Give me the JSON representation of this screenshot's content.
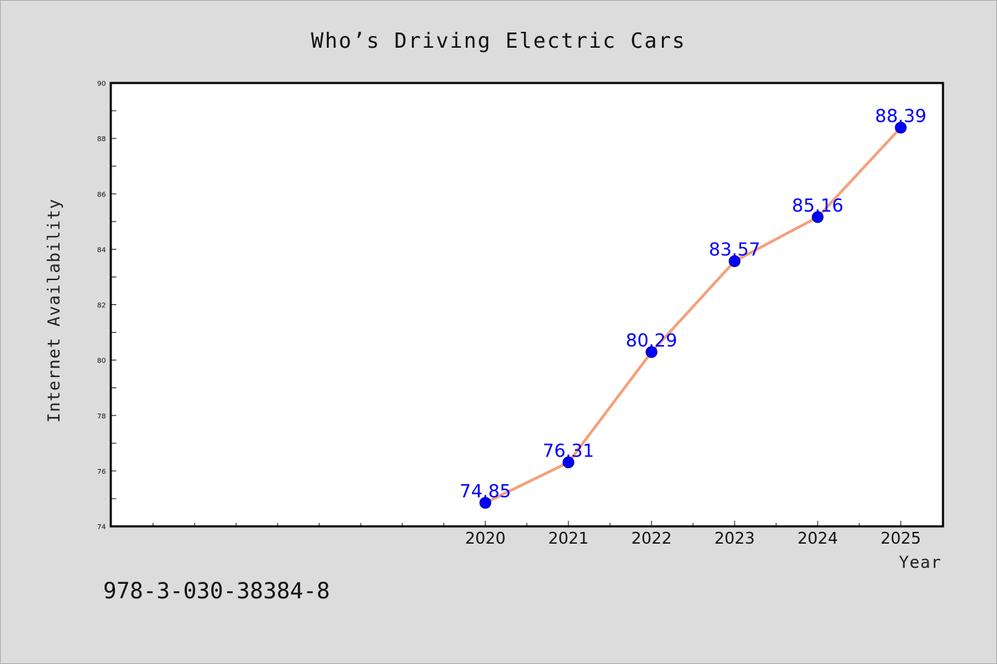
{
  "chart_data": {
    "type": "line",
    "title": "Who’s Driving Electric Cars",
    "xlabel": "Year",
    "ylabel": "Internet Availability",
    "x": [
      "2020",
      "2021",
      "2022",
      "2023",
      "2024",
      "2025"
    ],
    "series": [
      {
        "values": [
          74.85,
          76.31,
          80.29,
          83.57,
          85.16,
          88.39
        ]
      }
    ],
    "data_labels": [
      "74.85",
      "76.31",
      "80.29",
      "83.57",
      "85.16",
      "88.39"
    ],
    "ylim": [
      74,
      90
    ],
    "yticks": [
      "74",
      "76",
      "78",
      "80",
      "82",
      "84",
      "86",
      "88",
      "90"
    ],
    "grid": false,
    "legend": "none",
    "colors": {
      "line": "#f4a07a",
      "marker": "#0000ff",
      "label": "#0000ff",
      "plot_bg": "#ffffff",
      "page_bg": "#dcdcdc"
    }
  },
  "footnote": "978-3-030-38384-8"
}
